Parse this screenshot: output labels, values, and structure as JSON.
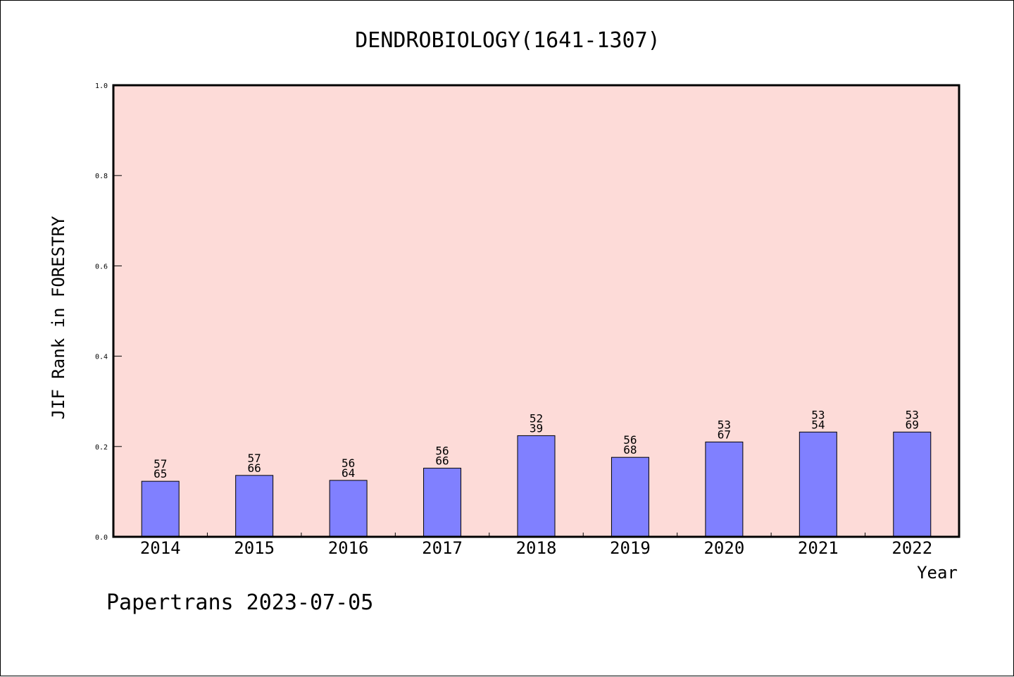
{
  "chart_data": {
    "type": "bar",
    "title": "DENDROBIOLOGY(1641-1307)",
    "xlabel": "Year",
    "ylabel": "JIF Rank in FORESTRY",
    "ylim": [
      0,
      1.0
    ],
    "yticks": [
      "0.0",
      "0.2",
      "0.4",
      "0.6",
      "0.8",
      "1.0"
    ],
    "categories": [
      "2014",
      "2015",
      "2016",
      "2017",
      "2018",
      "2019",
      "2020",
      "2021",
      "2022"
    ],
    "values": [
      0.123,
      0.136,
      0.125,
      0.152,
      0.224,
      0.176,
      0.21,
      0.232,
      0.232
    ],
    "labels_top": [
      "57",
      "57",
      "56",
      "56",
      "52",
      "56",
      "53",
      "53",
      "53"
    ],
    "labels_bottom": [
      "65",
      "66",
      "64",
      "66",
      "39",
      "68",
      "67",
      "54",
      "69"
    ],
    "grid": false,
    "legend": "none",
    "colors": {
      "plot_background": "#fddbd8",
      "bar_fill": "#8080ff",
      "bar_stroke": "#000000"
    }
  },
  "footer": {
    "text": "Papertrans 2023-07-05"
  }
}
